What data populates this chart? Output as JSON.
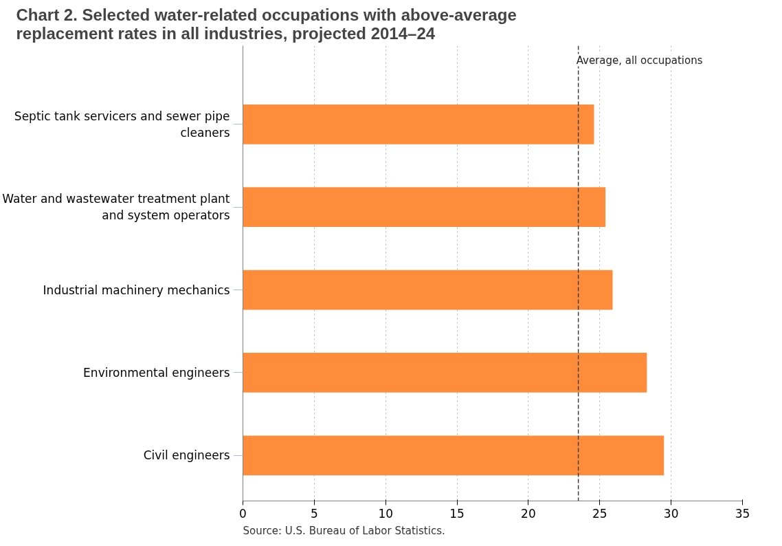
{
  "chart_data": {
    "type": "bar",
    "orientation": "horizontal",
    "title": "Chart 2. Selected water-related occupations with above-average replacement rates in all industries, projected 2014–24",
    "categories": [
      "Septic tank servicers and sewer pipe cleaners",
      "Water and wastewater treatment plant and system operators",
      "Industrial machinery mechanics",
      "Environmental engineers",
      "Civil engineers"
    ],
    "values": [
      24.6,
      25.4,
      25.9,
      28.3,
      29.5
    ],
    "color": "#ff8c3a",
    "xlim": [
      0,
      35
    ],
    "xticks": [
      0,
      5,
      10,
      15,
      20,
      25,
      30,
      35
    ],
    "grid": "x",
    "ref_lines": [
      {
        "axis": "x",
        "value": 23.5,
        "label": "Average, all occupations",
        "color": "#404040",
        "line_style": "dashed"
      }
    ],
    "annotations": [
      "Source: U.S. Bureau of Labor Statistics."
    ]
  }
}
